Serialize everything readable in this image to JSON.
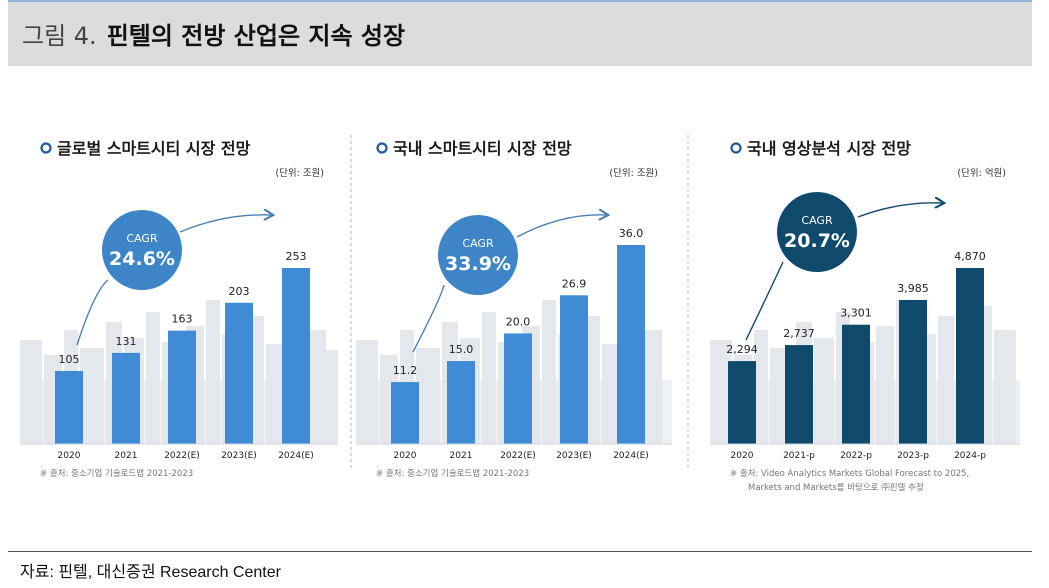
{
  "header": {
    "figure_no": "그림 4.",
    "title": "핀텔의 전방 산업은 지속 성장"
  },
  "colors": {
    "bar_blue": "#3f8bd6",
    "bar_navy": "#0f4a6c",
    "circle_blue": "#3d85c6",
    "circle_navy": "#0f4a6c",
    "bg_gray": "#eef1f4",
    "text_dark": "#222222"
  },
  "chart_data": [
    {
      "type": "bar",
      "title": "글로벌 스마트시티 시장 전망",
      "unit": "(단위: 조원)",
      "categories": [
        "2020",
        "2021",
        "2022(E)",
        "2023(E)",
        "2024(E)"
      ],
      "values": [
        105,
        131,
        163,
        203,
        253
      ],
      "value_labels": [
        "105",
        "131",
        "163",
        "203",
        "253"
      ],
      "cagr_label": "CAGR",
      "cagr_value": "24.6%",
      "source": "※ 출처: 중소기업 기술로드맵 2021-2023",
      "ylim": [
        0,
        300
      ],
      "theme": "blue"
    },
    {
      "type": "bar",
      "title": "국내 스마트시티 시장 전망",
      "unit": "(단위: 조원)",
      "categories": [
        "2020",
        "2021",
        "2022(E)",
        "2023(E)",
        "2024(E)"
      ],
      "values": [
        11.2,
        15.0,
        20.0,
        26.9,
        36.0
      ],
      "value_labels": [
        "11.2",
        "15.0",
        "20.0",
        "26.9",
        "36.0"
      ],
      "cagr_label": "CAGR",
      "cagr_value": "33.9%",
      "source": "※ 출처: 중소기업 기술로드맵 2021-2023",
      "ylim": [
        0,
        42
      ],
      "theme": "blue"
    },
    {
      "type": "bar",
      "title": "국내 영상분석 시장 전망",
      "unit": "(단위: 억원)",
      "categories": [
        "2020",
        "2021-p",
        "2022-p",
        "2023-p",
        "2024-p"
      ],
      "values": [
        2294,
        2737,
        3301,
        3985,
        4870
      ],
      "value_labels": [
        "2,294",
        "2,737",
        "3,301",
        "3,985",
        "4,870"
      ],
      "cagr_label": "CAGR",
      "cagr_value": "20.7%",
      "source": "※ 출처: Video Analytics Markets Global Forecast to 2025,",
      "source2": "Markets and Markets를 바탕으로 ㈜핀텔 추정",
      "ylim": [
        0,
        5200
      ],
      "theme": "navy"
    }
  ],
  "footer": {
    "source": "자료: 핀텔, 대신증권 Research Center"
  }
}
